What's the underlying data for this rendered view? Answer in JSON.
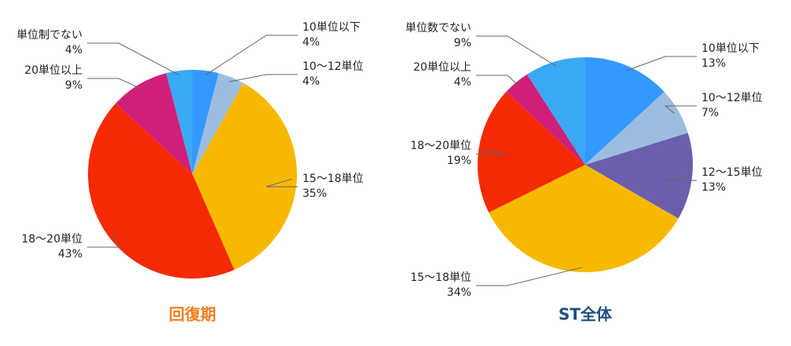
{
  "chart_data": [
    {
      "type": "pie",
      "title": "回復期",
      "title_color": "#f27d1a",
      "categories": [
        "10単位以下",
        "10〜12単位",
        "15〜18単位",
        "18〜20単位",
        "20単位以上",
        "単位制でない"
      ],
      "values": [
        4,
        4,
        35,
        43,
        9,
        4
      ],
      "value_labels": [
        "4%",
        "4%",
        "35%",
        "43%",
        "9%",
        "4%"
      ],
      "colors": [
        "#3399ff",
        "#9dbde0",
        "#f7b900",
        "#f52a05",
        "#d01f78",
        "#3aa9f5"
      ]
    },
    {
      "type": "pie",
      "title": "ST全体",
      "title_color": "#1f4f7a",
      "categories": [
        "10単位以下",
        "10〜12単位",
        "12〜15単位",
        "15〜18単位",
        "18〜20単位",
        "20単位以上",
        "単位数でない"
      ],
      "values": [
        13,
        7,
        13,
        34,
        19,
        4,
        9
      ],
      "value_labels": [
        "13%",
        "7%",
        "13%",
        "34%",
        "19%",
        "4%",
        "9%"
      ],
      "colors": [
        "#3399ff",
        "#9dbde0",
        "#6b5fad",
        "#f7b900",
        "#f52a05",
        "#d01f78",
        "#3aa9f5"
      ]
    }
  ]
}
